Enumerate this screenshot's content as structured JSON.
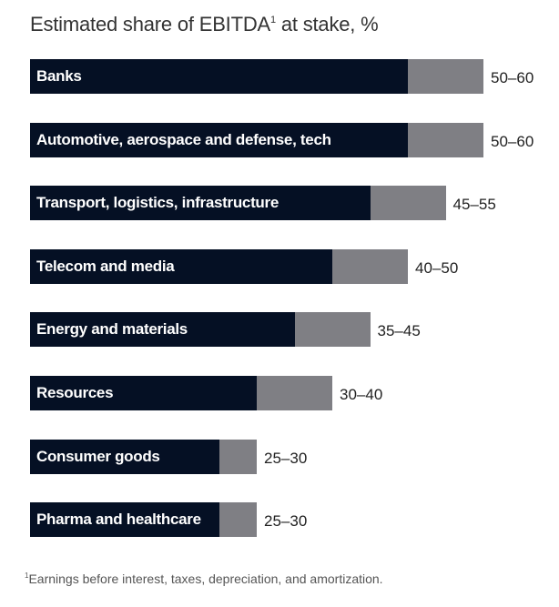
{
  "chart_data": {
    "type": "bar",
    "orientation": "horizontal",
    "stacked_range": true,
    "title": "Estimated share of EBITDA",
    "title_superscript": "1",
    "title_suffix": "at stake, %",
    "categories": [
      "Banks",
      "Automotive, aerospace and defense, tech",
      "Transport, logistics, infrastructure",
      "Telecom and media",
      "Energy and materials",
      "Resources",
      "Consumer goods",
      "Pharma and healthcare"
    ],
    "low": [
      50,
      50,
      45,
      40,
      35,
      30,
      25,
      25
    ],
    "high": [
      60,
      60,
      55,
      50,
      45,
      40,
      30,
      30
    ],
    "labels": [
      "50–60",
      "50–60",
      "45–55",
      "40–50",
      "35–45",
      "30–40",
      "25–30",
      "25–30"
    ],
    "xlim": [
      0,
      60
    ],
    "grid": false,
    "colors": {
      "low": "#051024",
      "range": "#7f7f84"
    }
  },
  "footnote": {
    "marker": "1",
    "text": "Earnings before interest, taxes, depreciation, and amortization."
  }
}
